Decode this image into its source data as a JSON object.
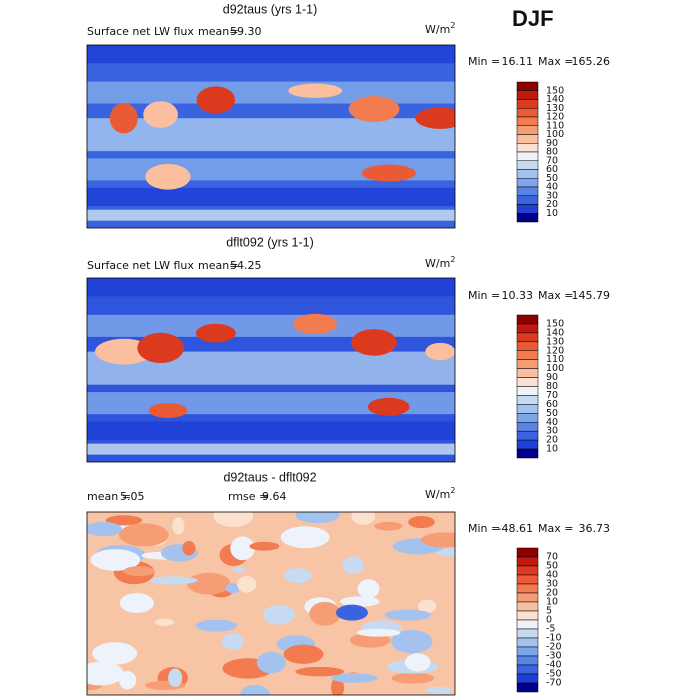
{
  "season": "DJF",
  "colorbar_colors": [
    "#8c0000",
    "#c1190f",
    "#dc3a1f",
    "#ea5a35",
    "#f27b50",
    "#f69d75",
    "#fbbf9f",
    "#fde1cf",
    "#eef3fb",
    "#c6daf2",
    "#a3c3ee",
    "#7ea6ea",
    "#5984e6",
    "#3a63e0",
    "#1f3fd6",
    "#00008a"
  ],
  "panels": [
    {
      "title": "d92taus (yrs 1-1)",
      "left_label": "Surface net LW flux",
      "stat1_label": "mean=",
      "stat1_value": "59.30",
      "units": "W/m",
      "units_sup": "2",
      "min_label": "Min =",
      "min": "16.11",
      "max_label": "Max =",
      "max": "165.26",
      "levels": [
        "150",
        "140",
        "130",
        "120",
        "110",
        "100",
        "90",
        "80",
        "70",
        "60",
        "50",
        "40",
        "30",
        "20",
        "10"
      ]
    },
    {
      "title": "dflt092 (yrs 1-1)",
      "left_label": "Surface net LW flux",
      "stat1_label": "mean=",
      "stat1_value": "54.25",
      "units": "W/m",
      "units_sup": "2",
      "min_label": "Min =",
      "min": "10.33",
      "max_label": "Max =",
      "max": "145.79",
      "levels": [
        "150",
        "140",
        "130",
        "120",
        "110",
        "100",
        "90",
        "80",
        "70",
        "60",
        "50",
        "40",
        "30",
        "20",
        "10"
      ]
    },
    {
      "title": "d92taus - dflt092",
      "stat1_label": "mean =",
      "stat1_value": "5.05",
      "stat2_label": "rmse =",
      "stat2_value": "9.64",
      "units": "W/m",
      "units_sup": "2",
      "min_label": "Min =",
      "min": "-48.61",
      "max_label": "Max =",
      "max": "36.73",
      "levels": [
        "70",
        "50",
        "40",
        "30",
        "20",
        "10",
        "5",
        "0",
        "-5",
        "-10",
        "-20",
        "-30",
        "-40",
        "-50",
        "-70"
      ]
    }
  ]
}
